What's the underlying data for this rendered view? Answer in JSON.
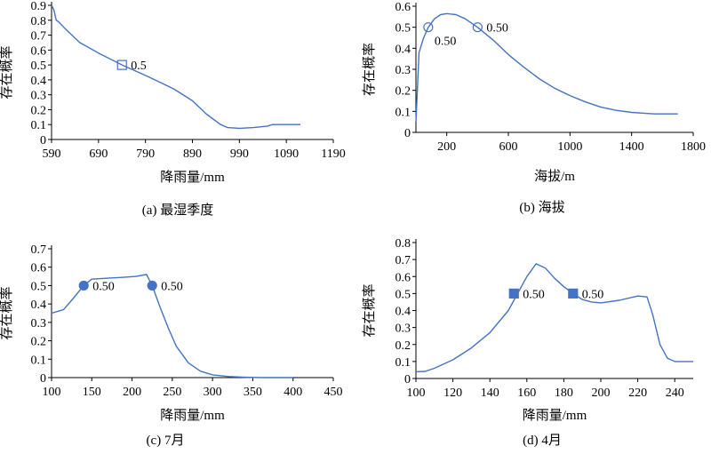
{
  "line_color": "#4472c4",
  "marker_color": "#4472c4",
  "chart_data": [
    {
      "id": "a",
      "type": "line",
      "caption": "(a) 最湿季度",
      "xlabel": "降雨量/mm",
      "ylabel": "存在概率",
      "xlim": [
        590,
        1190
      ],
      "ylim": [
        0,
        0.9
      ],
      "xticks": [
        "590",
        "690",
        "790",
        "890",
        "990",
        "1090",
        "1190"
      ],
      "yticks": [
        "0",
        "0.1",
        "0.2",
        "0.3",
        "0.4",
        "0.5",
        "0.6",
        "0.7",
        "0.8",
        "0.9"
      ],
      "series": [
        {
          "x": [
            590,
            595,
            600,
            605,
            620,
            650,
            690,
            740,
            790,
            850,
            890,
            920,
            950,
            965,
            990,
            1020,
            1050,
            1060,
            1120
          ],
          "y": [
            0.9,
            0.87,
            0.8,
            0.79,
            0.74,
            0.65,
            0.58,
            0.5,
            0.43,
            0.34,
            0.26,
            0.17,
            0.1,
            0.08,
            0.075,
            0.08,
            0.09,
            0.1,
            0.1
          ]
        }
      ],
      "markers": [
        {
          "x": 740,
          "y": 0.5,
          "shape": "square",
          "fill": "none",
          "label": "0.5"
        }
      ]
    },
    {
      "id": "b",
      "type": "line",
      "caption": "(b) 海拔",
      "xlabel": "海拔/m",
      "ylabel": "存在概率",
      "xlim": [
        0,
        1800
      ],
      "ylim": [
        0,
        0.6
      ],
      "xticks": [
        "200",
        "600",
        "1000",
        "1400",
        "1800"
      ],
      "xtick_values": [
        200,
        600,
        1000,
        1400,
        1800
      ],
      "yticks": [
        "0",
        "0.1",
        "0.2",
        "0.3",
        "0.4",
        "0.5",
        "0.6"
      ],
      "series": [
        {
          "x": [
            0,
            20,
            50,
            80,
            120,
            160,
            200,
            260,
            320,
            400,
            500,
            600,
            700,
            800,
            900,
            1000,
            1100,
            1200,
            1300,
            1400,
            1500,
            1550,
            1700
          ],
          "y": [
            0.05,
            0.38,
            0.45,
            0.5,
            0.54,
            0.56,
            0.565,
            0.56,
            0.54,
            0.5,
            0.44,
            0.37,
            0.31,
            0.255,
            0.21,
            0.175,
            0.145,
            0.12,
            0.105,
            0.095,
            0.09,
            0.088,
            0.088
          ]
        }
      ],
      "markers": [
        {
          "x": 80,
          "y": 0.5,
          "shape": "circle",
          "fill": "none",
          "label": "0.50",
          "label_pos": "below"
        },
        {
          "x": 400,
          "y": 0.5,
          "shape": "circle",
          "fill": "none",
          "label": "0.50",
          "label_pos": "right"
        }
      ]
    },
    {
      "id": "c",
      "type": "line",
      "caption": "(c) 7月",
      "xlabel": "降雨量/mm",
      "ylabel": "存在概率",
      "xlim": [
        100,
        450
      ],
      "ylim": [
        0,
        0.7
      ],
      "xticks": [
        "100",
        "150",
        "200",
        "250",
        "300",
        "350",
        "400",
        "450"
      ],
      "yticks": [
        "0",
        "0.1",
        "0.2",
        "0.3",
        "0.4",
        "0.5",
        "0.6",
        "0.7"
      ],
      "series": [
        {
          "x": [
            100,
            115,
            125,
            140,
            150,
            170,
            190,
            205,
            218,
            225,
            235,
            245,
            255,
            270,
            285,
            300,
            320,
            340,
            360,
            400
          ],
          "y": [
            0.35,
            0.37,
            0.42,
            0.5,
            0.535,
            0.54,
            0.545,
            0.55,
            0.56,
            0.5,
            0.38,
            0.27,
            0.17,
            0.08,
            0.035,
            0.015,
            0.006,
            0.002,
            0.0,
            0.0
          ]
        }
      ],
      "markers": [
        {
          "x": 140,
          "y": 0.5,
          "shape": "circle",
          "fill": "solid",
          "label": "0.50"
        },
        {
          "x": 225,
          "y": 0.5,
          "shape": "circle",
          "fill": "solid",
          "label": "0.50"
        }
      ]
    },
    {
      "id": "d",
      "type": "line",
      "caption": "(d) 4月",
      "xlabel": "降雨量/mm",
      "ylabel": "存在概率",
      "xlim": [
        100,
        250
      ],
      "ylim": [
        0,
        0.8
      ],
      "xticks": [
        "100",
        "120",
        "140",
        "160",
        "180",
        "200",
        "220",
        "240"
      ],
      "xtick_values": [
        100,
        120,
        140,
        160,
        180,
        200,
        220,
        240
      ],
      "yticks": [
        "0",
        "0.1",
        "0.2",
        "0.3",
        "0.4",
        "0.5",
        "0.6",
        "0.7",
        "0.8"
      ],
      "series": [
        {
          "x": [
            100,
            105,
            110,
            120,
            130,
            140,
            150,
            155,
            160,
            165,
            170,
            175,
            180,
            185,
            190,
            195,
            200,
            210,
            220,
            225,
            228,
            232,
            236,
            240,
            250
          ],
          "y": [
            0.04,
            0.042,
            0.06,
            0.11,
            0.18,
            0.27,
            0.4,
            0.5,
            0.6,
            0.675,
            0.65,
            0.59,
            0.54,
            0.5,
            0.465,
            0.45,
            0.445,
            0.46,
            0.485,
            0.48,
            0.38,
            0.2,
            0.12,
            0.1,
            0.1
          ]
        }
      ],
      "markers": [
        {
          "x": 153,
          "y": 0.5,
          "shape": "square",
          "fill": "solid",
          "label": "0.50"
        },
        {
          "x": 185,
          "y": 0.5,
          "shape": "square",
          "fill": "solid",
          "label": "0.50"
        }
      ]
    }
  ]
}
